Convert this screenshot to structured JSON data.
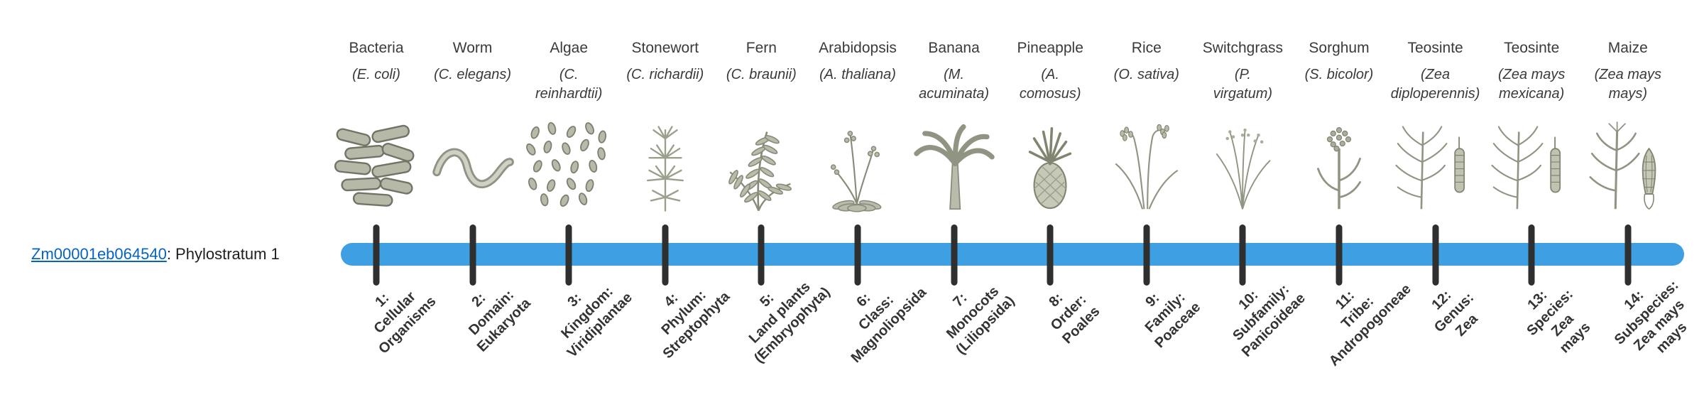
{
  "gene": {
    "id": "Zm00001eb064540",
    "suffix": ": Phylostratum 1"
  },
  "colors": {
    "bar": "#3EA0E2",
    "tick": "#2f2f2f",
    "link": "#0563C1",
    "text": "#3a3a3a"
  },
  "organisms": [
    {
      "name": "Bacteria",
      "scientific": "(E. coli)",
      "icon": "bacteria-icon",
      "stratum": "1:\nCellular\nOrganisms"
    },
    {
      "name": "Worm",
      "scientific": "(C. elegans)",
      "icon": "worm-icon",
      "stratum": "2:\nDomain:\nEukaryota"
    },
    {
      "name": "Algae",
      "scientific": "(C.\nreinhardtii)",
      "icon": "algae-icon",
      "stratum": "3:\nKingdom:\nViridiplantae"
    },
    {
      "name": "Stonewort",
      "scientific": "(C. richardii)",
      "icon": "stonewort-icon",
      "stratum": "4:\nPhylum:\nStreptophyta"
    },
    {
      "name": "Fern",
      "scientific": "(C. braunii)",
      "icon": "fern-icon",
      "stratum": "5:\nLand plants\n(Embryophyta)"
    },
    {
      "name": "Arabidopsis",
      "scientific": "(A. thaliana)",
      "icon": "arabidopsis-icon",
      "stratum": "6:\nClass:\nMagnoliopsida"
    },
    {
      "name": "Banana",
      "scientific": "(M.\nacuminata)",
      "icon": "banana-icon",
      "stratum": "7:\nMonocots\n(Liliopsida)"
    },
    {
      "name": "Pineapple",
      "scientific": "(A.\ncomosus)",
      "icon": "pineapple-icon",
      "stratum": "8:\nOrder:\nPoales"
    },
    {
      "name": "Rice",
      "scientific": "(O. sativa)",
      "icon": "rice-icon",
      "stratum": "9:\nFamily:\nPoaceae"
    },
    {
      "name": "Switchgrass",
      "scientific": "(P.\nvirgatum)",
      "icon": "switchgrass-icon",
      "stratum": "10:\nSubfamily:\nPanicoideae"
    },
    {
      "name": "Sorghum",
      "scientific": "(S. bicolor)",
      "icon": "sorghum-icon",
      "stratum": "11:\nTribe:\nAndropogoneae"
    },
    {
      "name": "Teosinte",
      "scientific": "(Zea\ndiploperennis)",
      "icon": "teosinte-icon",
      "stratum": "12:\nGenus:\nZea"
    },
    {
      "name": "Teosinte",
      "scientific": "(Zea mays\nmexicana)",
      "icon": "teosinte-icon",
      "stratum": "13:\nSpecies:\nZea\nmays"
    },
    {
      "name": "Maize",
      "scientific": "(Zea mays\nmays)",
      "icon": "maize-icon",
      "stratum": "14:\nSubspecies:\nZea mays\nmays"
    }
  ]
}
